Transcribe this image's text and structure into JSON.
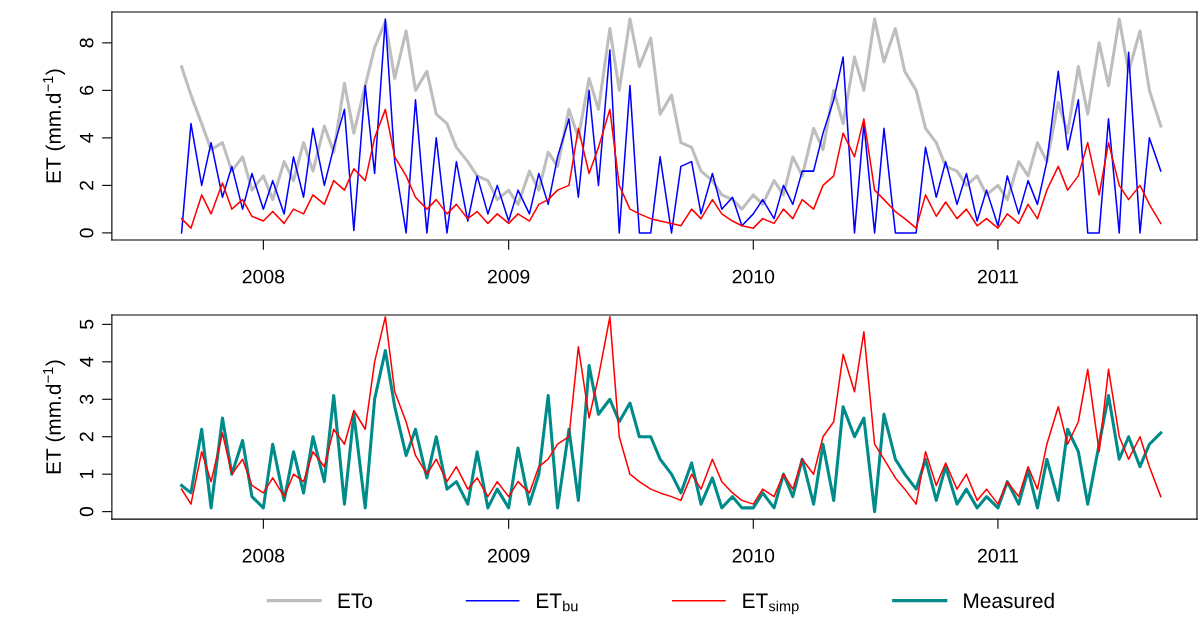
{
  "chart_data": [
    {
      "type": "line",
      "ylabel": "ET (mm.d$^{−1}$)",
      "xlim": [
        "2007-05-20",
        "2011-10-25"
      ],
      "ylim": [
        -0.3,
        9.3
      ],
      "yticks": [
        0,
        2,
        4,
        6,
        8
      ],
      "legend": "bottom",
      "xticks": [
        {
          "value": "2008-01-01",
          "label": "2008"
        },
        {
          "value": "2009-01-01",
          "label": "2009"
        },
        {
          "value": "2010-01-01",
          "label": "2010"
        },
        {
          "value": "2011-01-01",
          "label": "2011"
        }
      ],
      "x": [
        "2007-09-01",
        "2007-09-15",
        "2007-10-01",
        "2007-10-15",
        "2007-11-01",
        "2007-11-15",
        "2007-12-01",
        "2007-12-15",
        "2008-01-01",
        "2008-01-15",
        "2008-02-01",
        "2008-02-15",
        "2008-03-01",
        "2008-03-15",
        "2008-04-01",
        "2008-04-15",
        "2008-05-01",
        "2008-05-15",
        "2008-06-01",
        "2008-06-15",
        "2008-07-01",
        "2008-07-15",
        "2008-08-01",
        "2008-08-15",
        "2008-09-01",
        "2008-09-15",
        "2008-10-01",
        "2008-10-15",
        "2008-11-01",
        "2008-11-15",
        "2008-12-01",
        "2008-12-15",
        "2009-01-01",
        "2009-01-15",
        "2009-02-01",
        "2009-02-15",
        "2009-03-01",
        "2009-03-15",
        "2009-04-01",
        "2009-04-15",
        "2009-05-01",
        "2009-05-15",
        "2009-06-01",
        "2009-06-15",
        "2009-07-01",
        "2009-07-15",
        "2009-08-01",
        "2009-08-15",
        "2009-09-01",
        "2009-09-15",
        "2009-10-01",
        "2009-10-15",
        "2009-11-01",
        "2009-11-15",
        "2009-12-01",
        "2009-12-15",
        "2010-01-01",
        "2010-01-15",
        "2010-02-01",
        "2010-02-15",
        "2010-03-01",
        "2010-03-15",
        "2010-04-01",
        "2010-04-15",
        "2010-05-01",
        "2010-05-15",
        "2010-06-01",
        "2010-06-15",
        "2010-07-01",
        "2010-07-15",
        "2010-08-01",
        "2010-08-15",
        "2010-09-01",
        "2010-09-15",
        "2010-10-01",
        "2010-10-15",
        "2010-11-01",
        "2010-11-15",
        "2010-12-01",
        "2010-12-15",
        "2011-01-01",
        "2011-01-15",
        "2011-02-01",
        "2011-02-15",
        "2011-03-01",
        "2011-03-15",
        "2011-04-01",
        "2011-04-15",
        "2011-05-01",
        "2011-05-15",
        "2011-06-01",
        "2011-06-15",
        "2011-07-01",
        "2011-07-15",
        "2011-08-01",
        "2011-08-15",
        "2011-09-01"
      ],
      "series": [
        {
          "name": "ETo",
          "color": "#bebebe",
          "values": [
            7.0,
            5.8,
            4.6,
            3.5,
            3.8,
            2.6,
            3.2,
            1.8,
            2.4,
            1.4,
            3.0,
            2.2,
            3.8,
            2.6,
            4.5,
            3.4,
            6.3,
            4.2,
            6.2,
            7.8,
            8.9,
            6.5,
            8.5,
            6.0,
            6.8,
            5.0,
            4.6,
            3.6,
            3.0,
            2.4,
            2.2,
            1.4,
            1.8,
            1.2,
            2.6,
            1.8,
            3.4,
            2.8,
            5.2,
            4.0,
            6.5,
            5.2,
            8.6,
            6.0,
            9.0,
            7.0,
            8.2,
            5.0,
            5.8,
            3.8,
            3.6,
            2.6,
            2.2,
            1.6,
            1.4,
            1.0,
            1.6,
            1.2,
            2.2,
            1.6,
            3.2,
            2.4,
            4.4,
            3.5,
            6.0,
            4.6,
            7.4,
            6.0,
            9.0,
            7.2,
            8.6,
            6.8,
            6.0,
            4.4,
            3.8,
            2.8,
            2.6,
            2.0,
            2.4,
            1.6,
            2.0,
            1.4,
            3.0,
            2.4,
            3.8,
            3.0,
            5.5,
            4.2,
            7.0,
            5.0,
            8.0,
            6.2,
            9.0,
            6.8,
            8.5,
            6.0,
            4.5
          ]
        },
        {
          "name": "ET$_{bu}$",
          "color": "#0000ff",
          "values": [
            0,
            4.6,
            2.0,
            3.8,
            1.5,
            2.8,
            1.0,
            2.5,
            1.0,
            2.2,
            0.8,
            3.2,
            1.5,
            4.4,
            2.0,
            3.6,
            5.2,
            0.1,
            6.2,
            2.5,
            9.0,
            3.0,
            0,
            5.6,
            0,
            4.0,
            0,
            3.0,
            0.5,
            2.4,
            0.8,
            2.0,
            0.5,
            1.8,
            0.8,
            2.5,
            1.2,
            3.2,
            4.8,
            1.5,
            6.0,
            2.0,
            7.7,
            0,
            6.2,
            0,
            0,
            3.2,
            0,
            2.8,
            3.0,
            0.8,
            2.5,
            1.0,
            1.5,
            0.3,
            0.8,
            1.4,
            0.6,
            2.0,
            1.2,
            2.6,
            2.6,
            4.2,
            5.6,
            7.4,
            0,
            4.6,
            0,
            4.4,
            0,
            0,
            0,
            3.6,
            1.5,
            3.0,
            1.2,
            2.5,
            0.5,
            1.8,
            0.3,
            2.4,
            0.8,
            2.2,
            1.2,
            3.0,
            6.8,
            3.5,
            5.6,
            0,
            0,
            4.8,
            0,
            7.6,
            0,
            4.0,
            2.6
          ]
        },
        {
          "name": "ET$_{simp}$",
          "color": "#ff0000",
          "values": [
            0.6,
            0.2,
            1.6,
            0.8,
            2.1,
            1.0,
            1.4,
            0.7,
            0.5,
            0.9,
            0.4,
            1.0,
            0.8,
            1.6,
            1.2,
            2.2,
            1.8,
            2.7,
            2.2,
            4.0,
            5.2,
            3.2,
            2.4,
            1.5,
            1.0,
            1.4,
            0.8,
            1.2,
            0.6,
            0.9,
            0.4,
            0.8,
            0.4,
            0.8,
            0.5,
            1.2,
            1.4,
            1.8,
            2.0,
            4.4,
            2.5,
            3.6,
            5.2,
            2.0,
            1.0,
            0.8,
            0.6,
            0.5,
            0.4,
            0.3,
            1.0,
            0.6,
            1.4,
            0.8,
            0.5,
            0.3,
            0.2,
            0.6,
            0.4,
            1.0,
            0.6,
            1.4,
            1.0,
            2.0,
            2.4,
            4.2,
            3.2,
            4.8,
            1.8,
            1.4,
            0.9,
            0.6,
            0.2,
            1.6,
            0.7,
            1.3,
            0.6,
            1.0,
            0.3,
            0.6,
            0.2,
            0.8,
            0.4,
            1.2,
            0.6,
            1.8,
            2.8,
            1.8,
            2.4,
            3.8,
            1.6,
            3.8,
            2.0,
            1.4,
            2.0,
            1.2,
            0.4
          ]
        }
      ]
    },
    {
      "type": "line",
      "ylabel": "ET (mm.d$^{−1}$)",
      "xlim": [
        "2007-05-20",
        "2011-10-25"
      ],
      "ylim": [
        -0.2,
        5.25
      ],
      "yticks": [
        0,
        1,
        2,
        3,
        4,
        5
      ],
      "legend": "bottom",
      "xticks": [
        {
          "value": "2008-01-01",
          "label": "2008"
        },
        {
          "value": "2009-01-01",
          "label": "2009"
        },
        {
          "value": "2010-01-01",
          "label": "2010"
        },
        {
          "value": "2011-01-01",
          "label": "2011"
        }
      ],
      "x": [
        "2007-09-01",
        "2007-09-15",
        "2007-10-01",
        "2007-10-15",
        "2007-11-01",
        "2007-11-15",
        "2007-12-01",
        "2007-12-15",
        "2008-01-01",
        "2008-01-15",
        "2008-02-01",
        "2008-02-15",
        "2008-03-01",
        "2008-03-15",
        "2008-04-01",
        "2008-04-15",
        "2008-05-01",
        "2008-05-15",
        "2008-06-01",
        "2008-06-15",
        "2008-07-01",
        "2008-07-15",
        "2008-08-01",
        "2008-08-15",
        "2008-09-01",
        "2008-09-15",
        "2008-10-01",
        "2008-10-15",
        "2008-11-01",
        "2008-11-15",
        "2008-12-01",
        "2008-12-15",
        "2009-01-01",
        "2009-01-15",
        "2009-02-01",
        "2009-02-15",
        "2009-03-01",
        "2009-03-15",
        "2009-04-01",
        "2009-04-15",
        "2009-05-01",
        "2009-05-15",
        "2009-06-01",
        "2009-06-15",
        "2009-07-01",
        "2009-07-15",
        "2009-08-01",
        "2009-08-15",
        "2009-09-01",
        "2009-09-15",
        "2009-10-01",
        "2009-10-15",
        "2009-11-01",
        "2009-11-15",
        "2009-12-01",
        "2009-12-15",
        "2010-01-01",
        "2010-01-15",
        "2010-02-01",
        "2010-02-15",
        "2010-03-01",
        "2010-03-15",
        "2010-04-01",
        "2010-04-15",
        "2010-05-01",
        "2010-05-15",
        "2010-06-01",
        "2010-06-15",
        "2010-07-01",
        "2010-07-15",
        "2010-08-01",
        "2010-08-15",
        "2010-09-01",
        "2010-09-15",
        "2010-10-01",
        "2010-10-15",
        "2010-11-01",
        "2010-11-15",
        "2010-12-01",
        "2010-12-15",
        "2011-01-01",
        "2011-01-15",
        "2011-02-01",
        "2011-02-15",
        "2011-03-01",
        "2011-03-15",
        "2011-04-01",
        "2011-04-15",
        "2011-05-01",
        "2011-05-15",
        "2011-06-01",
        "2011-06-15",
        "2011-07-01",
        "2011-07-15",
        "2011-08-01",
        "2011-08-15",
        "2011-09-01"
      ],
      "series": [
        {
          "name": "Measured",
          "color": "#008b8b",
          "values": [
            0.7,
            0.5,
            2.2,
            0.1,
            2.5,
            1.0,
            1.9,
            0.4,
            0.1,
            1.8,
            0.3,
            1.6,
            0.5,
            2.0,
            0.8,
            3.1,
            0.2,
            2.6,
            0.1,
            3.0,
            4.3,
            2.8,
            1.5,
            2.2,
            0.9,
            2.0,
            0.6,
            0.8,
            0.2,
            1.6,
            0.1,
            0.6,
            0.1,
            1.7,
            0.2,
            1.0,
            3.1,
            0.1,
            2.2,
            0.3,
            3.9,
            2.6,
            3.0,
            2.4,
            2.9,
            2.0,
            2.0,
            1.4,
            1.0,
            0.5,
            1.3,
            0.2,
            0.9,
            0.1,
            0.4,
            0.1,
            0.1,
            0.5,
            0.1,
            1.0,
            0.4,
            1.4,
            0.2,
            1.8,
            0.3,
            2.8,
            2.0,
            2.5,
            0.0,
            2.6,
            1.4,
            1.0,
            0.6,
            1.4,
            0.3,
            1.2,
            0.2,
            0.6,
            0.1,
            0.4,
            0.1,
            0.8,
            0.2,
            1.1,
            0.1,
            1.4,
            0.3,
            2.2,
            1.6,
            0.2,
            1.8,
            3.1,
            1.4,
            2.0,
            1.2,
            1.8,
            2.1
          ]
        },
        {
          "name": "ET$_{simp}$",
          "color": "#ff0000",
          "values": [
            0.6,
            0.2,
            1.6,
            0.8,
            2.1,
            1.0,
            1.4,
            0.7,
            0.5,
            0.9,
            0.4,
            1.0,
            0.8,
            1.6,
            1.2,
            2.2,
            1.8,
            2.7,
            2.2,
            4.0,
            5.2,
            3.2,
            2.4,
            1.5,
            1.0,
            1.4,
            0.8,
            1.2,
            0.6,
            0.9,
            0.4,
            0.8,
            0.4,
            0.8,
            0.5,
            1.2,
            1.4,
            1.8,
            2.0,
            4.4,
            2.5,
            3.6,
            5.2,
            2.0,
            1.0,
            0.8,
            0.6,
            0.5,
            0.4,
            0.3,
            1.0,
            0.6,
            1.4,
            0.8,
            0.5,
            0.3,
            0.2,
            0.6,
            0.4,
            1.0,
            0.6,
            1.4,
            1.0,
            2.0,
            2.4,
            4.2,
            3.2,
            4.8,
            1.8,
            1.4,
            0.9,
            0.6,
            0.2,
            1.6,
            0.7,
            1.3,
            0.6,
            1.0,
            0.3,
            0.6,
            0.2,
            0.8,
            0.4,
            1.2,
            0.6,
            1.8,
            2.8,
            1.8,
            2.4,
            3.8,
            1.6,
            3.8,
            2.0,
            1.4,
            2.0,
            1.2,
            0.4
          ]
        }
      ]
    }
  ]
}
